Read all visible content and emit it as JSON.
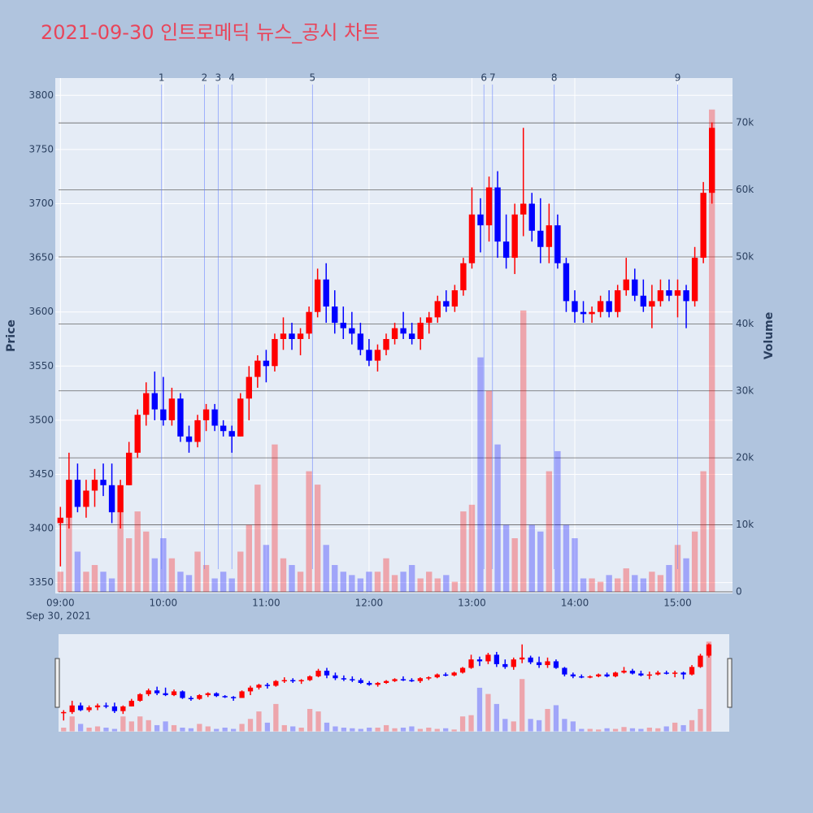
{
  "chart_data": {
    "type": "candlestick",
    "title": "2021-09-30 인트로메딕 뉴스_공시 차트",
    "y_label": "Price",
    "y2_label": "Volume",
    "date_label": "Sep 30, 2021",
    "increasing_color": "#ff0000",
    "decreasing_color": "#0000ff",
    "x": [
      "09:00",
      "09:05",
      "09:10",
      "09:15",
      "09:20",
      "09:25",
      "09:30",
      "09:35",
      "09:40",
      "09:45",
      "09:50",
      "09:55",
      "10:00",
      "10:05",
      "10:10",
      "10:15",
      "10:20",
      "10:25",
      "10:30",
      "10:35",
      "10:40",
      "10:45",
      "10:50",
      "10:55",
      "11:00",
      "11:05",
      "11:10",
      "11:15",
      "11:20",
      "11:25",
      "11:30",
      "11:35",
      "11:40",
      "11:45",
      "11:50",
      "11:55",
      "12:00",
      "12:05",
      "12:10",
      "12:15",
      "12:20",
      "12:25",
      "12:30",
      "12:35",
      "12:40",
      "12:45",
      "12:50",
      "12:55",
      "13:00",
      "13:05",
      "13:10",
      "13:15",
      "13:20",
      "13:25",
      "13:30",
      "13:35",
      "13:40",
      "13:45",
      "13:50",
      "13:55",
      "14:00",
      "14:05",
      "14:10",
      "14:15",
      "14:20",
      "14:25",
      "14:30",
      "14:35",
      "14:40",
      "14:45",
      "14:50",
      "14:55",
      "15:00",
      "15:05",
      "15:10",
      "15:15",
      "15:20"
    ],
    "open": [
      3405,
      3410,
      3445,
      3420,
      3435,
      3445,
      3440,
      3415,
      3440,
      3470,
      3505,
      3525,
      3510,
      3500,
      3520,
      3485,
      3480,
      3500,
      3510,
      3495,
      3490,
      3485,
      3520,
      3540,
      3555,
      3550,
      3575,
      3580,
      3575,
      3580,
      3600,
      3630,
      3605,
      3590,
      3585,
      3580,
      3565,
      3555,
      3565,
      3575,
      3585,
      3580,
      3575,
      3590,
      3595,
      3610,
      3605,
      3620,
      3645,
      3690,
      3680,
      3715,
      3665,
      3650,
      3690,
      3700,
      3675,
      3660,
      3680,
      3645,
      3610,
      3600,
      3598,
      3600,
      3610,
      3600,
      3620,
      3630,
      3615,
      3605,
      3610,
      3620,
      3615,
      3620,
      3610,
      3650,
      3710
    ],
    "high": [
      3420,
      3470,
      3460,
      3445,
      3455,
      3460,
      3460,
      3445,
      3480,
      3510,
      3535,
      3545,
      3540,
      3530,
      3525,
      3495,
      3505,
      3515,
      3515,
      3500,
      3495,
      3525,
      3550,
      3560,
      3565,
      3580,
      3595,
      3590,
      3585,
      3605,
      3640,
      3645,
      3620,
      3605,
      3600,
      3590,
      3575,
      3570,
      3580,
      3590,
      3600,
      3590,
      3595,
      3600,
      3615,
      3620,
      3625,
      3650,
      3715,
      3705,
      3725,
      3730,
      3690,
      3700,
      3770,
      3710,
      3705,
      3700,
      3690,
      3650,
      3620,
      3610,
      3605,
      3615,
      3620,
      3625,
      3650,
      3640,
      3630,
      3625,
      3630,
      3630,
      3630,
      3625,
      3660,
      3720,
      3775
    ],
    "low": [
      3365,
      3400,
      3415,
      3410,
      3420,
      3430,
      3405,
      3400,
      3440,
      3465,
      3495,
      3500,
      3495,
      3495,
      3480,
      3470,
      3475,
      3490,
      3490,
      3485,
      3470,
      3485,
      3500,
      3530,
      3535,
      3545,
      3565,
      3565,
      3560,
      3575,
      3595,
      3590,
      3580,
      3575,
      3570,
      3560,
      3550,
      3545,
      3560,
      3570,
      3575,
      3570,
      3565,
      3580,
      3590,
      3600,
      3600,
      3615,
      3640,
      3655,
      3665,
      3650,
      3640,
      3635,
      3670,
      3665,
      3645,
      3645,
      3640,
      3600,
      3590,
      3590,
      3590,
      3595,
      3595,
      3595,
      3615,
      3610,
      3600,
      3585,
      3605,
      3610,
      3595,
      3585,
      3605,
      3645,
      3700
    ],
    "close": [
      3410,
      3445,
      3420,
      3435,
      3445,
      3440,
      3415,
      3440,
      3470,
      3505,
      3525,
      3510,
      3500,
      3520,
      3485,
      3480,
      3500,
      3510,
      3495,
      3490,
      3485,
      3520,
      3540,
      3555,
      3550,
      3575,
      3580,
      3575,
      3580,
      3600,
      3630,
      3605,
      3590,
      3585,
      3580,
      3565,
      3555,
      3565,
      3575,
      3585,
      3580,
      3575,
      3590,
      3595,
      3610,
      3605,
      3620,
      3645,
      3690,
      3680,
      3715,
      3665,
      3650,
      3690,
      3700,
      3675,
      3660,
      3680,
      3645,
      3610,
      3600,
      3598,
      3600,
      3610,
      3600,
      3620,
      3630,
      3615,
      3605,
      3610,
      3620,
      3615,
      3620,
      3610,
      3650,
      3710,
      3770
    ],
    "volume": [
      3000,
      12000,
      6000,
      3000,
      4000,
      3000,
      2000,
      12000,
      8000,
      12000,
      9000,
      5000,
      8000,
      5000,
      3000,
      2500,
      6000,
      4000,
      2000,
      3000,
      2000,
      6000,
      10000,
      16000,
      7000,
      22000,
      5000,
      4000,
      3000,
      18000,
      16000,
      7000,
      4000,
      3000,
      2500,
      2000,
      3000,
      3000,
      5000,
      2500,
      3000,
      4000,
      2000,
      3000,
      2000,
      2500,
      1500,
      12000,
      13000,
      35000,
      30000,
      22000,
      10000,
      8000,
      42000,
      10000,
      9000,
      18000,
      21000,
      10000,
      8000,
      2000,
      2000,
      1500,
      2500,
      2000,
      3500,
      2500,
      2000,
      3000,
      2500,
      4000,
      7000,
      5000,
      9000,
      18000,
      72000
    ],
    "annotations": [
      {
        "label": "1",
        "x": "09:59"
      },
      {
        "label": "2",
        "x": "10:24"
      },
      {
        "label": "3",
        "x": "10:32"
      },
      {
        "label": "4",
        "x": "10:40"
      },
      {
        "label": "5",
        "x": "11:27"
      },
      {
        "label": "6",
        "x": "13:07"
      },
      {
        "label": "7",
        "x": "13:12"
      },
      {
        "label": "8",
        "x": "13:48"
      },
      {
        "label": "9",
        "x": "15:00"
      }
    ],
    "xlim": [
      "08:57",
      "15:32"
    ],
    "xticks": [
      "09:00",
      "10:00",
      "11:00",
      "12:00",
      "13:00",
      "14:00",
      "15:00"
    ],
    "ylim": [
      3340,
      3816
    ],
    "yticks": [
      3350,
      3400,
      3450,
      3500,
      3550,
      3600,
      3650,
      3700,
      3750,
      3800
    ],
    "y2lim": [
      -250,
      76700
    ],
    "y2ticks": [
      0,
      {
        "value": 10000,
        "label": "10k"
      },
      {
        "value": 20000,
        "label": "20k"
      },
      {
        "value": 30000,
        "label": "30k"
      },
      {
        "value": 40000,
        "label": "40k"
      },
      {
        "value": 50000,
        "label": "50k"
      },
      {
        "value": 60000,
        "label": "60k"
      },
      {
        "value": 70000,
        "label": "70k"
      }
    ],
    "grid": true,
    "range_slider": true
  }
}
